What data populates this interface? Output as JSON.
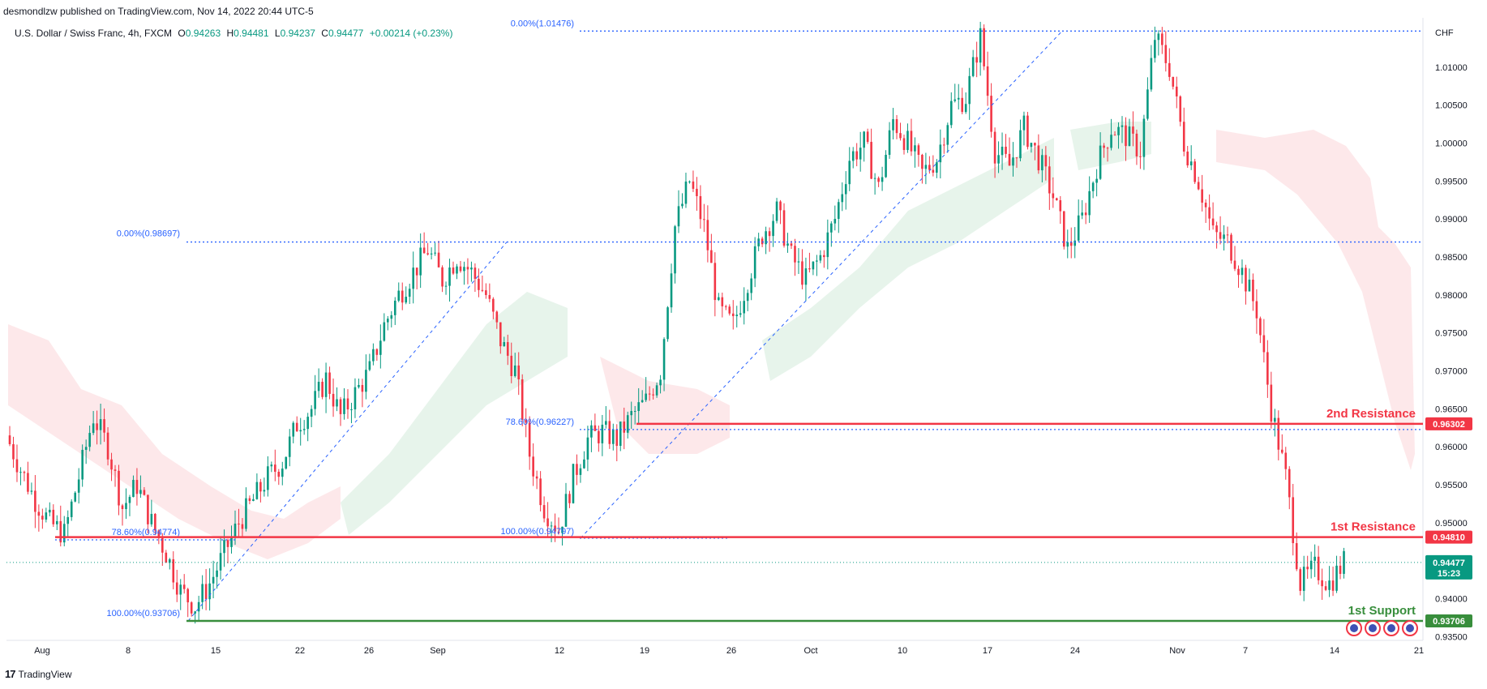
{
  "header": {
    "published": "desmondlzw published on TradingView.com, Nov 14, 2022 20:44 UTC-5",
    "symbol": "U.S. Dollar / Swiss Franc, 4h, FXCM",
    "o_key": "O",
    "o_val": "0.94263",
    "h_key": "H",
    "h_val": "0.94481",
    "l_key": "L",
    "l_val": "0.94237",
    "c_key": "C",
    "c_val": "0.94477",
    "change": "+0.00214 (+0.23%)"
  },
  "footer": {
    "brand": "TradingView",
    "logo": "17"
  },
  "colors": {
    "up": "#089981",
    "down": "#f23645",
    "support": "#388e3c",
    "fib": "#2962ff",
    "cloud_up": "#e3f2e7",
    "cloud_down": "#fde4e6"
  },
  "chart_data": {
    "type": "candlestick",
    "currency": "CHF",
    "ylim": [
      0.9345,
      1.0165
    ],
    "x_ticks": [
      "Aug",
      "8",
      "15",
      "22",
      "26",
      "Sep",
      "12",
      "19",
      "26",
      "Oct",
      "10",
      "17",
      "24",
      "Nov",
      "7",
      "14",
      "21"
    ],
    "y_ticks": [
      "1.01000",
      "1.00500",
      "1.00000",
      "0.99500",
      "0.99000",
      "0.98500",
      "0.98000",
      "0.97500",
      "0.97000",
      "0.96500",
      "0.96000",
      "0.95500",
      "0.95000",
      "0.94000",
      "0.93500"
    ],
    "y_tick_values": [
      1.01,
      1.005,
      1.0,
      0.995,
      0.99,
      0.985,
      0.98,
      0.975,
      0.97,
      0.965,
      0.96,
      0.955,
      0.95,
      0.94,
      0.935
    ],
    "price_path": [
      [
        0.9615,
        0.957,
        0.953,
        0.95,
        0.9485,
        0.956,
        0.964,
        0.96,
        0.952,
        0.955,
        0.95,
        0.946,
        0.941,
        0.939,
        0.942,
        0.946,
        0.95,
        0.953,
        0.956,
        0.958,
        0.963,
        0.965,
        0.969,
        0.964,
        0.967,
        0.97,
        0.976,
        0.98,
        0.983,
        0.986,
        0.982,
        0.985,
        0.983,
        0.98,
        0.974,
        0.97,
        0.959,
        0.952,
        0.949,
        0.956,
        0.961,
        0.962,
        0.961,
        0.964,
        0.966,
        0.97,
        0.989,
        0.995,
        0.989,
        0.978,
        0.976,
        0.982,
        0.988,
        0.991,
        0.985,
        0.982,
        0.985,
        0.99,
        0.998,
        1.0,
        0.994,
        1.003,
        1.0,
        0.996,
        0.998,
        1.005,
        1.006,
        1.014,
        0.999,
        0.997,
        1.002,
        0.998,
        0.993,
        0.986,
        0.99,
        0.997,
        1.002,
        1.001,
        0.999,
        1.014,
        1.01,
        1.0,
        0.995,
        0.988,
        0.987,
        0.983,
        0.978,
        0.965,
        0.956,
        0.942,
        0.944,
        0.942,
        0.9448
      ]
    ],
    "fib_levels": [
      {
        "label": "0.00%(1.01476)",
        "value": 1.01476
      },
      {
        "label": "0.00%(0.98697)",
        "value": 0.98697
      },
      {
        "label": "78.60%(0.96227)",
        "value": 0.96227
      },
      {
        "label": "78.60%(0.94774)",
        "value": 0.94774
      },
      {
        "label": "100.00%(0.94797)",
        "value": 0.94797
      },
      {
        "label": "100.00%(0.93706)",
        "value": 0.93706
      }
    ],
    "levels": [
      {
        "name": "2nd Resistance",
        "value": 0.96302,
        "tag": "0.96302",
        "color": "#f23645"
      },
      {
        "name": "1st Resistance",
        "value": 0.9481,
        "tag": "0.94810",
        "color": "#f23645"
      },
      {
        "name": "1st Support",
        "value": 0.93706,
        "tag": "0.93706",
        "color": "#388e3c"
      }
    ],
    "last_price": {
      "value": 0.94477,
      "tag": "0.94477",
      "countdown": "15:23"
    }
  }
}
